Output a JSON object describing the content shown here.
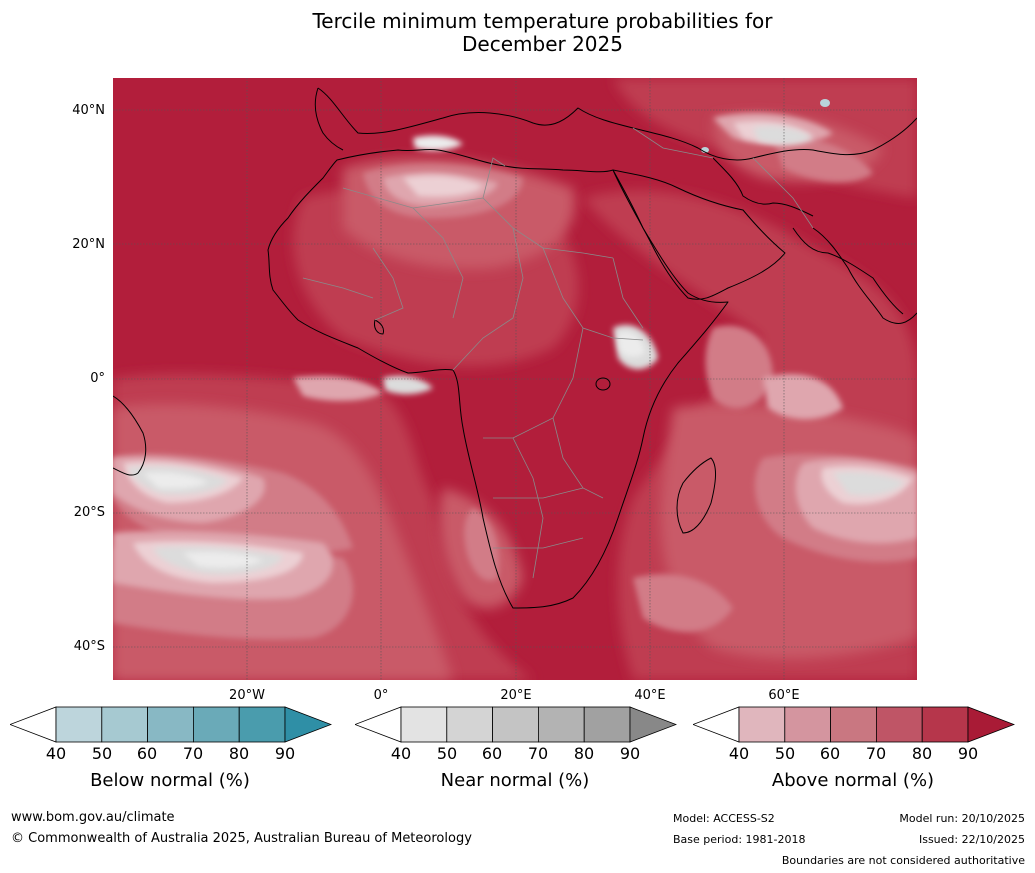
{
  "title_line1": "Tercile minimum temperature probabilities for",
  "title_line2": "December 2025",
  "lat_labels": [
    "40°N",
    "20°N",
    "0°",
    "20°S",
    "40°S"
  ],
  "lon_labels": [
    "20°W",
    "0°",
    "20°E",
    "40°E",
    "60°E"
  ],
  "legends": [
    {
      "caption": "Below normal (%)",
      "ticks": [
        "40",
        "50",
        "60",
        "70",
        "80",
        "90"
      ],
      "colors": [
        "#ffffff",
        "#bdd5dc",
        "#a6c9d1",
        "#88b8c4",
        "#6aaab8",
        "#4a9cad",
        "#2f8fa6"
      ]
    },
    {
      "caption": "Near normal (%)",
      "ticks": [
        "40",
        "50",
        "60",
        "70",
        "80",
        "90"
      ],
      "colors": [
        "#ffffff",
        "#e3e3e3",
        "#d4d4d4",
        "#c4c4c4",
        "#b3b3b3",
        "#a1a1a1",
        "#888888"
      ]
    },
    {
      "caption": "Above normal (%)",
      "ticks": [
        "40",
        "50",
        "60",
        "70",
        "80",
        "90"
      ],
      "colors": [
        "#ffffff",
        "#e0b6bd",
        "#d4959f",
        "#c97781",
        "#bf5566",
        "#b6364b",
        "#a91b36"
      ]
    }
  ],
  "footer": {
    "website": "www.bom.gov.au/climate",
    "copyright": "© Commonwealth of Australia 2025, Australian Bureau of Meteorology",
    "model": "Model: ACCESS-S2",
    "base_period": "Base period: 1981-2018",
    "model_run": "Model run: 20/10/2025",
    "issued": "Issued: 22/10/2025",
    "disclaimer": "Boundaries are not considered authoritative"
  },
  "map_colors": {
    "ocean_deep": "#b21e3b",
    "above_80": "#bf3c51",
    "above_70": "#c95a68",
    "above_60": "#d27c87",
    "above_50": "#dfa6ae",
    "above_40": "#ecd0d4",
    "near_50": "#dcdcdc",
    "near_40": "#ececec",
    "below_50": "#b9d3da"
  }
}
